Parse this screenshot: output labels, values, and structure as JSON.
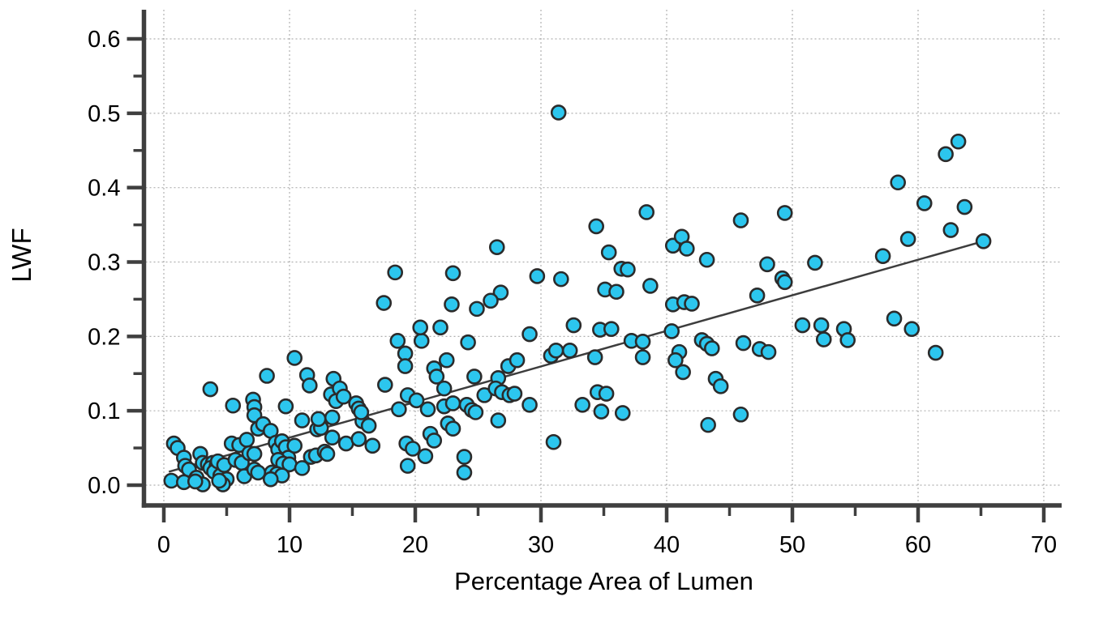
{
  "chart_data": {
    "type": "scatter",
    "title": "",
    "xlabel": "Percentage Area of Lumen",
    "ylabel": "LWF",
    "x_tick_labels": [
      "0",
      "10",
      "20",
      "30",
      "40",
      "50",
      "60",
      "70"
    ],
    "x_tick_values": [
      0,
      10,
      20,
      30,
      40,
      50,
      60,
      70
    ],
    "x_minor_tick_values": [
      5,
      15,
      25,
      35,
      45,
      55,
      65
    ],
    "y_tick_labels": [
      "0.0",
      "0.1",
      "0.2",
      "0.3",
      "0.4",
      "0.5",
      "0.6"
    ],
    "y_tick_values": [
      0.0,
      0.1,
      0.2,
      0.3,
      0.4,
      0.5,
      0.6
    ],
    "y_minor_tick_values": [
      0.05,
      0.15,
      0.25,
      0.35,
      0.45,
      0.55
    ],
    "xlim": [
      0,
      70
    ],
    "ylim": [
      0,
      0.6
    ],
    "grid": "dotted, both axes",
    "legend": "none",
    "marker_color": "#2cc6ee",
    "marker_edge_color": "#2b2b2b",
    "trend_line_color": "#3d3d3d",
    "axis_color": "#3f3f3f",
    "grid_color": "#b0b0b0",
    "trend_line": {
      "x1": 0.4,
      "y1": 0.018,
      "x2": 65.2,
      "y2": 0.328
    },
    "points": [
      [
        0.6,
        0.006
      ],
      [
        0.8,
        0.056
      ],
      [
        1.1,
        0.05
      ],
      [
        1.6,
        0.037
      ],
      [
        1.7,
        0.026
      ],
      [
        2.0,
        0.021
      ],
      [
        1.6,
        0.004
      ],
      [
        2.6,
        0.01
      ],
      [
        3.1,
        0.001
      ],
      [
        2.9,
        0.042
      ],
      [
        3.1,
        0.03
      ],
      [
        3.5,
        0.028
      ],
      [
        3.9,
        0.03
      ],
      [
        3.7,
        0.023
      ],
      [
        4.2,
        0.026
      ],
      [
        2.5,
        0.005
      ],
      [
        4.0,
        0.018
      ],
      [
        4.5,
        0.013
      ],
      [
        5.0,
        0.008
      ],
      [
        4.3,
        0.032
      ],
      [
        4.8,
        0.027
      ],
      [
        4.7,
        0.001
      ],
      [
        4.4,
        0.006
      ],
      [
        3.7,
        0.129
      ],
      [
        5.4,
        0.056
      ],
      [
        6.0,
        0.054
      ],
      [
        6.6,
        0.061
      ],
      [
        5.7,
        0.034
      ],
      [
        6.2,
        0.03
      ],
      [
        6.4,
        0.012
      ],
      [
        6.8,
        0.043
      ],
      [
        5.5,
        0.107
      ],
      [
        7.1,
        0.115
      ],
      [
        7.2,
        0.105
      ],
      [
        7.2,
        0.094
      ],
      [
        7.2,
        0.042
      ],
      [
        7.5,
        0.076
      ],
      [
        7.9,
        0.082
      ],
      [
        8.5,
        0.073
      ],
      [
        8.9,
        0.057
      ],
      [
        9.1,
        0.048
      ],
      [
        9.4,
        0.059
      ],
      [
        9.7,
        0.051
      ],
      [
        9.9,
        0.037
      ],
      [
        9.1,
        0.034
      ],
      [
        9.5,
        0.029
      ],
      [
        10.0,
        0.028
      ],
      [
        8.6,
        0.017
      ],
      [
        9.0,
        0.015
      ],
      [
        9.4,
        0.013
      ],
      [
        8.5,
        0.008
      ],
      [
        7.2,
        0.021
      ],
      [
        7.5,
        0.017
      ],
      [
        8.2,
        0.147
      ],
      [
        9.7,
        0.106
      ],
      [
        10.4,
        0.171
      ],
      [
        10.4,
        0.053
      ],
      [
        11.0,
        0.087
      ],
      [
        11.4,
        0.148
      ],
      [
        11.6,
        0.134
      ],
      [
        11.0,
        0.023
      ],
      [
        11.7,
        0.038
      ],
      [
        12.1,
        0.04
      ],
      [
        12.8,
        0.045
      ],
      [
        13.0,
        0.042
      ],
      [
        12.2,
        0.075
      ],
      [
        12.5,
        0.077
      ],
      [
        12.3,
        0.089
      ],
      [
        13.4,
        0.091
      ],
      [
        13.4,
        0.064
      ],
      [
        13.5,
        0.143
      ],
      [
        13.3,
        0.122
      ],
      [
        13.7,
        0.113
      ],
      [
        14.0,
        0.13
      ],
      [
        14.3,
        0.119
      ],
      [
        14.5,
        0.056
      ],
      [
        15.5,
        0.062
      ],
      [
        16.6,
        0.053
      ],
      [
        15.8,
        0.086
      ],
      [
        16.3,
        0.08
      ],
      [
        15.3,
        0.11
      ],
      [
        15.5,
        0.103
      ],
      [
        15.7,
        0.098
      ],
      [
        17.6,
        0.135
      ],
      [
        18.6,
        0.194
      ],
      [
        19.2,
        0.177
      ],
      [
        19.2,
        0.16
      ],
      [
        20.5,
        0.194
      ],
      [
        21.5,
        0.157
      ],
      [
        21.7,
        0.146
      ],
      [
        22.5,
        0.168
      ],
      [
        22.3,
        0.13
      ],
      [
        19.4,
        0.121
      ],
      [
        20.1,
        0.114
      ],
      [
        18.7,
        0.102
      ],
      [
        21.0,
        0.102
      ],
      [
        22.3,
        0.106
      ],
      [
        19.3,
        0.056
      ],
      [
        19.8,
        0.049
      ],
      [
        20.8,
        0.039
      ],
      [
        19.4,
        0.026
      ],
      [
        21.2,
        0.069
      ],
      [
        21.5,
        0.06
      ],
      [
        22.6,
        0.083
      ],
      [
        18.4,
        0.286
      ],
      [
        17.5,
        0.245
      ],
      [
        20.4,
        0.212
      ],
      [
        22.0,
        0.212
      ],
      [
        23.0,
        0.285
      ],
      [
        22.9,
        0.243
      ],
      [
        23.0,
        0.11
      ],
      [
        23.0,
        0.076
      ],
      [
        23.9,
        0.038
      ],
      [
        23.9,
        0.017
      ],
      [
        24.2,
        0.192
      ],
      [
        24.1,
        0.108
      ],
      [
        24.5,
        0.101
      ],
      [
        24.8,
        0.098
      ],
      [
        24.7,
        0.146
      ],
      [
        25.5,
        0.121
      ],
      [
        26.6,
        0.144
      ],
      [
        26.4,
        0.13
      ],
      [
        26.9,
        0.125
      ],
      [
        27.4,
        0.16
      ],
      [
        28.1,
        0.168
      ],
      [
        27.5,
        0.121
      ],
      [
        27.9,
        0.123
      ],
      [
        29.1,
        0.108
      ],
      [
        26.6,
        0.087
      ],
      [
        26.5,
        0.32
      ],
      [
        26.8,
        0.259
      ],
      [
        26.0,
        0.248
      ],
      [
        24.9,
        0.237
      ],
      [
        29.7,
        0.281
      ],
      [
        29.1,
        0.203
      ],
      [
        31.0,
        0.058
      ],
      [
        30.8,
        0.174
      ],
      [
        31.4,
        0.501
      ],
      [
        31.2,
        0.181
      ],
      [
        32.3,
        0.181
      ],
      [
        31.6,
        0.277
      ],
      [
        32.6,
        0.215
      ],
      [
        33.3,
        0.108
      ],
      [
        34.3,
        0.172
      ],
      [
        34.4,
        0.348
      ],
      [
        34.5,
        0.125
      ],
      [
        35.2,
        0.123
      ],
      [
        34.8,
        0.099
      ],
      [
        34.7,
        0.209
      ],
      [
        35.6,
        0.21
      ],
      [
        35.4,
        0.313
      ],
      [
        35.1,
        0.263
      ],
      [
        36.0,
        0.26
      ],
      [
        36.4,
        0.291
      ],
      [
        36.9,
        0.29
      ],
      [
        36.5,
        0.097
      ],
      [
        37.2,
        0.194
      ],
      [
        38.1,
        0.193
      ],
      [
        38.1,
        0.172
      ],
      [
        38.4,
        0.367
      ],
      [
        38.7,
        0.268
      ],
      [
        40.5,
        0.322
      ],
      [
        41.2,
        0.334
      ],
      [
        41.6,
        0.318
      ],
      [
        40.4,
        0.207
      ],
      [
        40.5,
        0.243
      ],
      [
        41.4,
        0.246
      ],
      [
        42.0,
        0.244
      ],
      [
        41.0,
        0.179
      ],
      [
        40.7,
        0.168
      ],
      [
        41.3,
        0.152
      ],
      [
        42.8,
        0.195
      ],
      [
        43.2,
        0.303
      ],
      [
        43.2,
        0.19
      ],
      [
        43.6,
        0.184
      ],
      [
        43.9,
        0.143
      ],
      [
        44.3,
        0.133
      ],
      [
        43.3,
        0.081
      ],
      [
        45.9,
        0.356
      ],
      [
        45.9,
        0.095
      ],
      [
        46.1,
        0.191
      ],
      [
        47.2,
        0.255
      ],
      [
        47.4,
        0.183
      ],
      [
        48.1,
        0.179
      ],
      [
        48.0,
        0.297
      ],
      [
        49.2,
        0.278
      ],
      [
        49.4,
        0.273
      ],
      [
        49.4,
        0.366
      ],
      [
        50.8,
        0.215
      ],
      [
        51.8,
        0.299
      ],
      [
        52.3,
        0.215
      ],
      [
        52.5,
        0.196
      ],
      [
        54.1,
        0.21
      ],
      [
        54.4,
        0.195
      ],
      [
        57.2,
        0.308
      ],
      [
        58.1,
        0.224
      ],
      [
        58.4,
        0.407
      ],
      [
        59.2,
        0.331
      ],
      [
        59.5,
        0.21
      ],
      [
        60.5,
        0.379
      ],
      [
        61.4,
        0.178
      ],
      [
        62.2,
        0.445
      ],
      [
        62.6,
        0.343
      ],
      [
        63.2,
        0.462
      ],
      [
        63.7,
        0.374
      ],
      [
        65.2,
        0.328
      ]
    ]
  }
}
